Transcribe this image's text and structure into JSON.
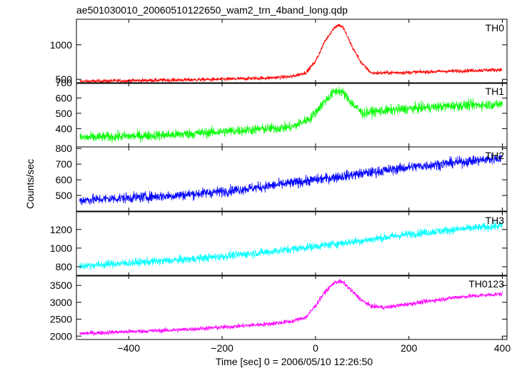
{
  "chart_data": {
    "type": "line",
    "title": "ae501030010_20060510122650_wam2_trn_4band_long.qdp",
    "xlabel": "Time [sec] 0 = 2006/05/10 12:26:50",
    "ylabel": "Counts/sec",
    "xlim": [
      -512,
      410
    ],
    "x_ticks": [
      -400,
      -200,
      0,
      200,
      400
    ],
    "grid": false,
    "legend": "none",
    "panels": [
      {
        "label": "TH0",
        "color": "#ff0000",
        "ylim": [
          440,
          1370
        ],
        "y_ticks": [
          500,
          1000
        ],
        "x": [
          -500,
          -400,
          -300,
          -200,
          -100,
          -50,
          -20,
          0,
          20,
          40,
          50,
          60,
          80,
          100,
          120,
          200,
          300,
          400
        ],
        "values": [
          470,
          480,
          490,
          500,
          520,
          540,
          600,
          760,
          1050,
          1250,
          1290,
          1240,
          950,
          720,
          590,
          600,
          620,
          640
        ],
        "noise": 25
      },
      {
        "label": "TH1",
        "color": "#00ff00",
        "ylim": [
          280,
          700
        ],
        "y_ticks": [
          400,
          500,
          600,
          700
        ],
        "x": [
          -500,
          -400,
          -300,
          -200,
          -100,
          -50,
          -10,
          20,
          40,
          50,
          60,
          80,
          100,
          120,
          200,
          300,
          400
        ],
        "values": [
          340,
          350,
          360,
          380,
          400,
          410,
          470,
          580,
          640,
          650,
          630,
          560,
          500,
          510,
          530,
          550,
          560
        ],
        "noise": 30
      },
      {
        "label": "TH2",
        "color": "#0000ff",
        "ylim": [
          400,
          810
        ],
        "y_ticks": [
          500,
          600,
          700,
          800
        ],
        "x": [
          -500,
          -400,
          -300,
          -200,
          -100,
          0,
          100,
          200,
          300,
          400
        ],
        "values": [
          470,
          485,
          500,
          525,
          560,
          600,
          640,
          680,
          710,
          740
        ],
        "noise": 30
      },
      {
        "label": "TH3",
        "color": "#00ffff",
        "ylim": [
          700,
          1390
        ],
        "y_ticks": [
          800,
          1000,
          1200
        ],
        "x": [
          -500,
          -400,
          -300,
          -200,
          -100,
          0,
          100,
          200,
          300,
          400
        ],
        "values": [
          810,
          840,
          870,
          910,
          960,
          1020,
          1080,
          1150,
          1200,
          1240
        ],
        "noise": 40
      },
      {
        "label": "TH0123",
        "color": "#ff00ff",
        "ylim": [
          1900,
          3800
        ],
        "y_ticks": [
          2000,
          2500,
          3000,
          3500
        ],
        "x": [
          -500,
          -400,
          -300,
          -200,
          -100,
          -50,
          -20,
          0,
          20,
          40,
          50,
          60,
          80,
          100,
          120,
          150,
          200,
          300,
          400
        ],
        "values": [
          2080,
          2130,
          2180,
          2260,
          2360,
          2440,
          2560,
          2900,
          3300,
          3580,
          3620,
          3580,
          3300,
          3050,
          2880,
          2850,
          2950,
          3150,
          3250
        ],
        "noise": 60
      }
    ]
  }
}
